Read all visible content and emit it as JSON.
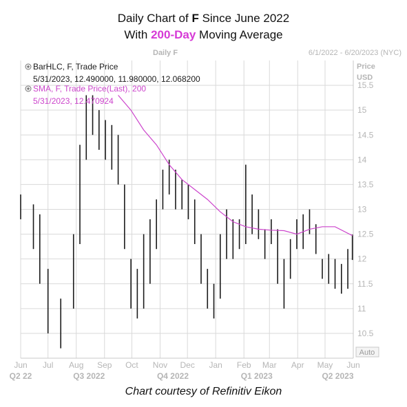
{
  "title": {
    "line1_pre": "Daily Chart of ",
    "line1_bold": "F",
    "line1_post": " Since June 2022",
    "line2_pre": "With ",
    "line2_hl": "200-Day",
    "line2_post": " Moving Average"
  },
  "header": {
    "chart_name": "Daily F",
    "date_range": "6/1/2022 - 6/20/2023 (NYC)"
  },
  "legend": {
    "bar_label": "BarHLC, F, Trade Price",
    "bar_values": "5/31/2023, 12.490000, 11.980000, 12.068200",
    "sma_label": "SMA, F, Trade Price(Last),  200",
    "sma_values": "5/31/2023, 12.470924"
  },
  "axis": {
    "price_label": "Price",
    "unit_label": "USD",
    "auto_label": "Auto"
  },
  "credit": "Chart courtesy of Refinitiv Eikon",
  "colors": {
    "bars": "#1a1a1a",
    "sma": "#cc44cc",
    "title_highlight": "#d63ad6",
    "grid": "#d9d9d9",
    "axis_text": "#b5b5b5"
  },
  "chart_data": {
    "type": "line",
    "series": [
      {
        "name": "BarHLC, F, Trade Price",
        "style": "ohlc-bars",
        "points": [
          [
            "2022-06-01",
            12.8,
            13.3
          ],
          [
            "2022-06-15",
            12.2,
            13.1
          ],
          [
            "2022-06-22",
            11.5,
            12.9
          ],
          [
            "2022-07-01",
            10.5,
            11.8
          ],
          [
            "2022-07-15",
            10.2,
            11.2
          ],
          [
            "2022-07-29",
            11.0,
            12.5
          ],
          [
            "2022-08-05",
            12.3,
            14.3
          ],
          [
            "2022-08-12",
            14.0,
            15.3
          ],
          [
            "2022-08-19",
            14.5,
            15.3
          ],
          [
            "2022-08-26",
            14.2,
            15.0
          ],
          [
            "2022-09-02",
            14.0,
            14.8
          ],
          [
            "2022-09-09",
            13.8,
            14.7
          ],
          [
            "2022-09-16",
            13.5,
            14.5
          ],
          [
            "2022-09-23",
            12.2,
            13.5
          ],
          [
            "2022-09-30",
            11.0,
            12.0
          ],
          [
            "2022-10-07",
            10.8,
            11.8
          ],
          [
            "2022-10-14",
            11.0,
            12.5
          ],
          [
            "2022-10-21",
            11.5,
            12.8
          ],
          [
            "2022-10-28",
            12.2,
            13.2
          ],
          [
            "2022-11-04",
            13.0,
            13.8
          ],
          [
            "2022-11-11",
            13.3,
            14.0
          ],
          [
            "2022-11-18",
            13.0,
            13.8
          ],
          [
            "2022-11-25",
            13.0,
            13.6
          ],
          [
            "2022-12-02",
            12.8,
            13.5
          ],
          [
            "2022-12-09",
            12.3,
            13.2
          ],
          [
            "2022-12-16",
            11.5,
            12.5
          ],
          [
            "2022-12-23",
            11.0,
            11.8
          ],
          [
            "2022-12-30",
            10.8,
            11.5
          ],
          [
            "2023-01-06",
            11.2,
            12.5
          ],
          [
            "2023-01-13",
            12.0,
            13.0
          ],
          [
            "2023-01-20",
            12.0,
            12.8
          ],
          [
            "2023-01-27",
            12.2,
            12.8
          ],
          [
            "2023-02-03",
            12.3,
            13.9
          ],
          [
            "2023-02-10",
            12.5,
            13.3
          ],
          [
            "2023-02-17",
            12.4,
            13.0
          ],
          [
            "2023-02-24",
            12.0,
            12.6
          ],
          [
            "2023-03-03",
            12.3,
            12.8
          ],
          [
            "2023-03-10",
            11.5,
            12.6
          ],
          [
            "2023-03-17",
            11.0,
            12.0
          ],
          [
            "2023-03-24",
            11.6,
            12.4
          ],
          [
            "2023-03-31",
            12.2,
            12.8
          ],
          [
            "2023-04-07",
            12.2,
            12.9
          ],
          [
            "2023-04-14",
            12.5,
            13.0
          ],
          [
            "2023-04-21",
            12.1,
            12.7
          ],
          [
            "2023-04-28",
            11.6,
            12.0
          ],
          [
            "2023-05-05",
            11.5,
            12.1
          ],
          [
            "2023-05-12",
            11.4,
            12.0
          ],
          [
            "2023-05-19",
            11.3,
            11.9
          ],
          [
            "2023-05-26",
            11.4,
            12.2
          ],
          [
            "2023-05-31",
            11.98,
            12.49
          ]
        ]
      },
      {
        "name": "SMA, F, Trade Price(Last),  200",
        "style": "line",
        "points": [
          [
            "2022-09-16",
            15.3
          ],
          [
            "2022-09-30",
            15.0
          ],
          [
            "2022-10-14",
            14.6
          ],
          [
            "2022-10-28",
            14.3
          ],
          [
            "2022-11-11",
            13.9
          ],
          [
            "2022-11-25",
            13.6
          ],
          [
            "2022-12-09",
            13.4
          ],
          [
            "2022-12-23",
            13.2
          ],
          [
            "2023-01-06",
            12.95
          ],
          [
            "2023-01-20",
            12.75
          ],
          [
            "2023-02-03",
            12.65
          ],
          [
            "2023-02-17",
            12.6
          ],
          [
            "2023-03-03",
            12.58
          ],
          [
            "2023-03-17",
            12.57
          ],
          [
            "2023-03-31",
            12.5
          ],
          [
            "2023-04-14",
            12.6
          ],
          [
            "2023-04-28",
            12.65
          ],
          [
            "2023-05-12",
            12.65
          ],
          [
            "2023-05-31",
            12.47
          ]
        ]
      }
    ],
    "x_domain": [
      "2022-06-01",
      "2023-06-01"
    ],
    "x_tick_labels": [
      "Jun",
      "Jul",
      "Aug",
      "Sep",
      "Oct",
      "Nov",
      "Dec",
      "Jan",
      "Feb",
      "Mar",
      "Apr",
      "May",
      "Jun"
    ],
    "x_tick_dates": [
      "2022-06-01",
      "2022-07-01",
      "2022-08-01",
      "2022-09-01",
      "2022-10-01",
      "2022-11-01",
      "2022-12-01",
      "2023-01-01",
      "2023-02-01",
      "2023-03-01",
      "2023-04-01",
      "2023-05-01",
      "2023-06-01"
    ],
    "quarter_labels": [
      "Q2 22",
      "Q3 2022",
      "Q4 2022",
      "Q1 2023",
      "Q2 2023"
    ],
    "quarter_dates": [
      "2022-06-01",
      "2022-08-15",
      "2022-11-15",
      "2023-02-15",
      "2023-05-15"
    ],
    "ylim": [
      10,
      16
    ],
    "y_ticks": [
      10.5,
      11,
      11.5,
      12,
      12.5,
      13,
      13.5,
      14,
      14.5,
      15,
      15.5
    ],
    "grid": true
  }
}
